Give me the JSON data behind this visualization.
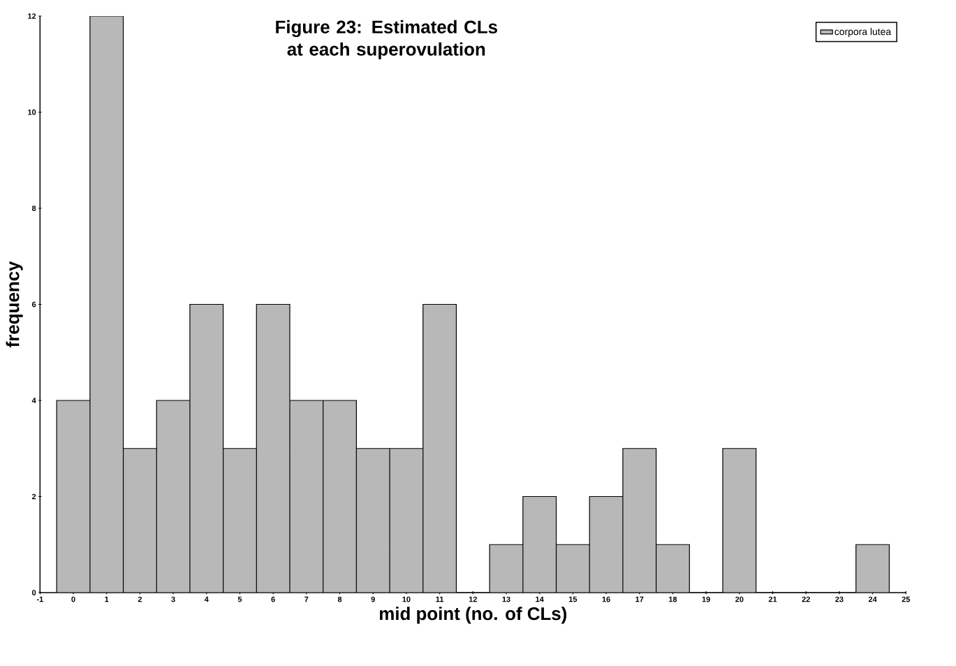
{
  "chart_data": {
    "type": "histogram",
    "title": "Figure 23: Estimated CLs at each superovulation",
    "xlabel": "mid point (no. of CLs)",
    "ylabel": "frequency",
    "bins": [
      -0.5,
      0.5,
      1.5,
      2.5,
      3.5,
      4.5,
      5.5,
      6.5,
      7.5,
      8.5,
      9.5,
      10.5,
      11.5,
      12.5,
      13.5,
      14.5,
      15.5,
      16.5,
      17.5,
      18.5,
      19.5,
      20.5,
      21.5,
      22.5,
      23.5,
      24.5
    ],
    "series": [
      {
        "name": "corpora lutea",
        "color": "#b8b8b8",
        "values": [
          4,
          12,
          3,
          4,
          6,
          3,
          6,
          4,
          4,
          3,
          3,
          6,
          0,
          1,
          2,
          1,
          2,
          3,
          1,
          0,
          3,
          0,
          0,
          0,
          1
        ]
      }
    ],
    "xlim": [
      -1,
      25
    ],
    "xticks": [
      -1,
      0,
      1,
      2,
      3,
      4,
      5,
      6,
      7,
      8,
      9,
      10,
      11,
      12,
      13,
      14,
      15,
      16,
      17,
      18,
      19,
      20,
      21,
      22,
      23,
      24,
      25
    ],
    "ylim": [
      0,
      12
    ],
    "yticks": [
      0,
      2,
      4,
      6,
      8,
      10,
      12
    ],
    "legend": "top right",
    "grid": false
  }
}
